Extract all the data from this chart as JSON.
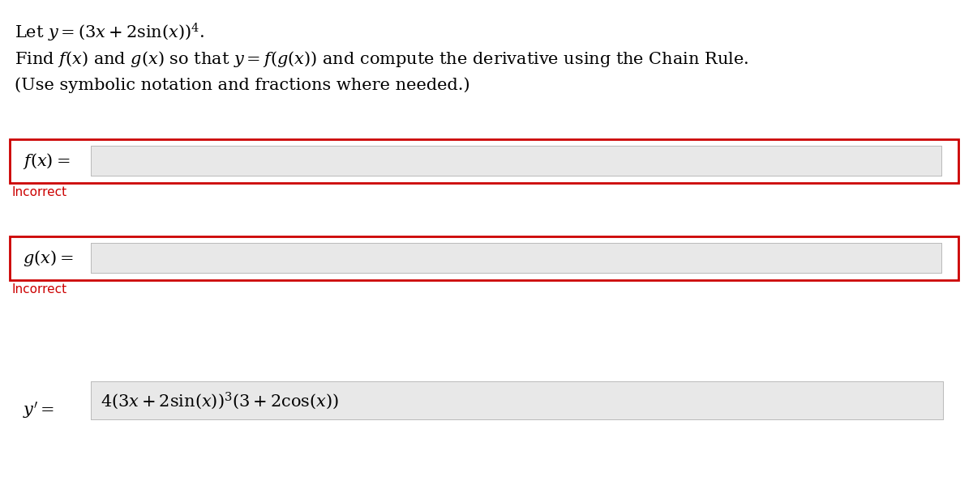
{
  "bg_color": "#ffffff",
  "line1": "Let $y = (3x + 2\\sin(x))^4$.",
  "line2": "Find $f(x)$ and $g(x)$ so that $y = f(g(x))$ and compute the derivative using the Chain Rule.",
  "line3": "(Use symbolic notation and fractions where needed.)",
  "fx_label": "$f(x) =$",
  "gx_label": "$g(x) =$",
  "incorrect_text": "Incorrect",
  "incorrect_color": "#cc0000",
  "yprime_label": "$y' =$",
  "yprime_value": "$4(3x+2\\sin(x))^3(3+2\\cos(x))$",
  "box_border_color_red": "#cc0000",
  "input_bg": "#e8e8e8",
  "text_color": "#000000",
  "font_size_main": 15,
  "font_size_label": 15,
  "font_size_incorrect": 11
}
